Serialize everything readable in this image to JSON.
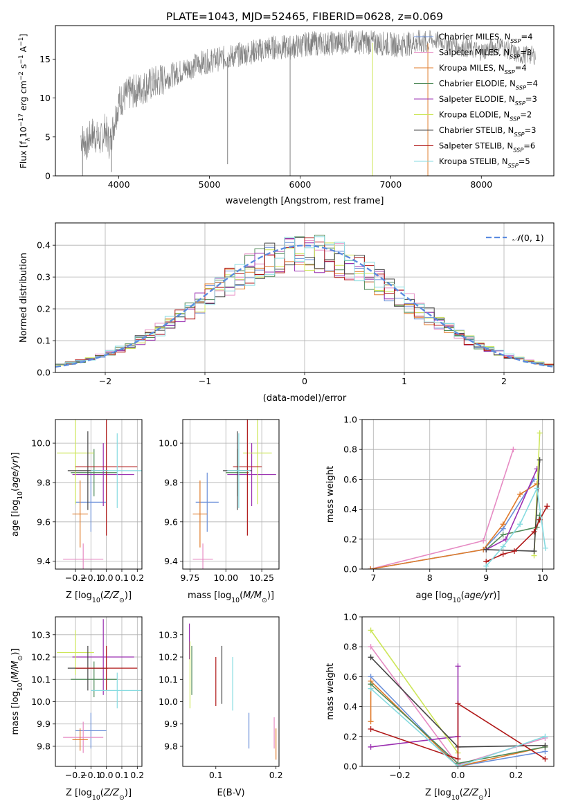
{
  "figure": {
    "title": "PLATE=1043, MJD=52465, FIBERID=0628, z=0.069"
  },
  "models": [
    {
      "name": "Chabrier MILES",
      "nssp": "4",
      "color": "#6a8fd9"
    },
    {
      "name": "Salpeter MILES",
      "nssp": "3",
      "color": "#e68ac3"
    },
    {
      "name": "Kroupa MILES",
      "nssp": "4",
      "color": "#e07b2a"
    },
    {
      "name": "Chabrier ELODIE",
      "nssp": "4",
      "color": "#4f8a58"
    },
    {
      "name": "Salpeter ELODIE",
      "nssp": "3",
      "color": "#9a2fb0"
    },
    {
      "name": "Kroupa ELODIE",
      "nssp": "2",
      "color": "#cde658"
    },
    {
      "name": "Chabrier STELIB",
      "nssp": "3",
      "color": "#444444"
    },
    {
      "name": "Salpeter STELIB",
      "nssp": "6",
      "color": "#b01818"
    },
    {
      "name": "Kroupa STELIB",
      "nssp": "5",
      "color": "#86dbe0"
    }
  ],
  "chart_data": [
    {
      "id": "spectrum",
      "type": "line",
      "xlabel": "wavelength [Angstrom, rest frame]",
      "ylabel": "Flux [f_λ10^-17 erg cm^-2 s^-1 A^-1]",
      "xlim": [
        3300,
        8800
      ],
      "ylim": [
        0,
        19.3
      ],
      "xticks": [
        4000,
        5000,
        6000,
        7000,
        8000
      ],
      "yticks": [
        0,
        5,
        10,
        15
      ],
      "data_color": "#808080",
      "model_color": "#7fd6dc",
      "continuum": {
        "x": [
          3580,
          3650,
          3700,
          3800,
          3850,
          3900,
          3950,
          4000,
          4100,
          4200,
          4300,
          4500,
          4700,
          4900,
          5100,
          5300,
          5500,
          5700,
          5900,
          6100,
          6300,
          6500,
          6700,
          6900,
          7100,
          7300,
          7420
        ],
        "y": [
          5,
          4,
          5.5,
          4.5,
          6,
          4,
          7,
          9.5,
          10.5,
          11,
          11.5,
          12.5,
          13.5,
          14.5,
          15,
          15.5,
          16,
          16.5,
          16.5,
          17,
          17,
          17.2,
          17.2,
          17,
          16.8,
          17.2,
          17
        ]
      },
      "tail": {
        "x": [
          7420,
          7600,
          7800,
          8000,
          8200,
          8400,
          8600
        ],
        "y": [
          17.5,
          17.2,
          16.5,
          16,
          16.8,
          15.5,
          15.5
        ]
      },
      "absorption_spikes": [
        {
          "x": 3600,
          "ymin": 0
        },
        {
          "x": 3920,
          "ymin": 0.5
        },
        {
          "x": 5200,
          "ymin": 1.5
        },
        {
          "x": 5890,
          "ymin": 0
        },
        {
          "x": 6800,
          "ymin": 0
        },
        {
          "x": 7410,
          "ymin": 0
        }
      ]
    },
    {
      "id": "residual-histogram",
      "type": "bar",
      "xlabel": "(data-model)/error",
      "ylabel": "Normed distribution",
      "xlim": [
        -2.5,
        2.5
      ],
      "ylim": [
        0,
        0.47
      ],
      "xticks": [
        -2,
        -1,
        0,
        1,
        2
      ],
      "yticks": [
        0.0,
        0.1,
        0.2,
        0.3,
        0.4
      ],
      "grid": true,
      "bin_width": 0.1,
      "legend": "N(0,1)",
      "legend_position": "top-right",
      "gaussian_color": "#5b8be0"
    },
    {
      "id": "age-vs-Z",
      "type": "scatter",
      "xlabel": "Z [log10(Z/Z⊙)]",
      "ylabel": "age [log10(age/yr)]",
      "xlim": [
        -0.33,
        0.23
      ],
      "ylim": [
        9.36,
        10.12
      ],
      "xticks": [
        -0.2,
        -0.1,
        0.0,
        0.1,
        0.2
      ],
      "yticks": [
        9.4,
        9.6,
        9.8,
        10.0
      ],
      "grid": true,
      "points": [
        {
          "x": -0.1,
          "xerr": 0.1,
          "y": 9.7,
          "yerr": 0.15
        },
        {
          "x": -0.15,
          "xerr": 0.13,
          "y": 9.41,
          "yerr": 0.08
        },
        {
          "x": -0.17,
          "xerr": 0.05,
          "y": 9.64,
          "yerr": 0.17
        },
        {
          "x": -0.08,
          "xerr": 0.15,
          "y": 9.85,
          "yerr": 0.12
        },
        {
          "x": -0.02,
          "xerr": 0.2,
          "y": 9.84,
          "yerr": 0.16
        },
        {
          "x": -0.2,
          "xerr": 0.12,
          "y": 9.95,
          "yerr": 0.26
        },
        {
          "x": -0.12,
          "xerr": 0.13,
          "y": 9.86,
          "yerr": 0.2
        },
        {
          "x": 0.0,
          "xerr": 0.2,
          "y": 9.88,
          "yerr": 0.35
        },
        {
          "x": 0.07,
          "xerr": 0.17,
          "y": 9.86,
          "yerr": 0.19
        }
      ]
    },
    {
      "id": "age-vs-mass",
      "type": "scatter",
      "xlabel": "mass [log10(M/M⊙)]",
      "ylabel": "",
      "xlim": [
        9.7,
        10.37
      ],
      "ylim": [
        9.36,
        10.12
      ],
      "xticks": [
        9.75,
        10.0,
        10.25
      ],
      "yticks": [
        9.4,
        9.6,
        9.8,
        10.0
      ],
      "grid": true,
      "points": [
        {
          "x": 9.87,
          "xerr": 0.08,
          "y": 9.7,
          "yerr": 0.15
        },
        {
          "x": 9.84,
          "xerr": 0.07,
          "y": 9.41,
          "yerr": 0.08
        },
        {
          "x": 9.82,
          "xerr": 0.05,
          "y": 9.64,
          "yerr": 0.17
        },
        {
          "x": 10.08,
          "xerr": 0.08,
          "y": 9.85,
          "yerr": 0.12
        },
        {
          "x": 10.18,
          "xerr": 0.17,
          "y": 9.84,
          "yerr": 0.16
        },
        {
          "x": 10.22,
          "xerr": 0.1,
          "y": 9.95,
          "yerr": 0.26
        },
        {
          "x": 10.08,
          "xerr": 0.1,
          "y": 9.86,
          "yerr": 0.2
        },
        {
          "x": 10.15,
          "xerr": 0.1,
          "y": 9.88,
          "yerr": 0.35
        },
        {
          "x": 10.09,
          "xerr": 0.08,
          "y": 9.86,
          "yerr": 0.19
        }
      ]
    },
    {
      "id": "mass-weight-vs-age",
      "type": "line",
      "xlabel": "age [log10(age/yr)]",
      "ylabel": "mass weight",
      "xlim": [
        6.8,
        10.2
      ],
      "ylim": [
        0,
        1.0
      ],
      "xticks": [
        7,
        8,
        9,
        10
      ],
      "yticks": [
        0.0,
        0.2,
        0.4,
        0.6,
        0.8,
        1.0
      ],
      "grid": true,
      "series": [
        {
          "x": [
            6.95,
            8.95,
            9.3,
            9.85
          ],
          "y": [
            0.0,
            0.13,
            0.27,
            0.6
          ]
        },
        {
          "x": [
            6.95,
            8.95,
            9.48
          ],
          "y": [
            0.0,
            0.19,
            0.8
          ]
        },
        {
          "x": [
            6.95,
            8.95,
            9.3,
            9.6,
            9.9
          ],
          "y": [
            0.0,
            0.13,
            0.3,
            0.5,
            0.57
          ]
        },
        {
          "x": [
            9.0,
            9.3,
            9.9,
            9.95
          ],
          "y": [
            0.13,
            0.23,
            0.28,
            0.36
          ]
        },
        {
          "x": [
            9.0,
            9.35,
            9.9
          ],
          "y": [
            0.13,
            0.2,
            0.67
          ]
        },
        {
          "x": [
            9.85,
            9.95
          ],
          "y": [
            0.09,
            0.91
          ]
        },
        {
          "x": [
            9.0,
            9.85,
            9.95
          ],
          "y": [
            0.13,
            0.12,
            0.73
          ]
        },
        {
          "x": [
            9.0,
            9.3,
            9.5,
            9.85,
            9.95,
            10.08
          ],
          "y": [
            0.05,
            0.1,
            0.12,
            0.25,
            0.33,
            0.42
          ]
        },
        {
          "x": [
            9.0,
            9.3,
            9.6,
            9.9,
            10.05
          ],
          "y": [
            0.02,
            0.15,
            0.3,
            0.54,
            0.14
          ]
        }
      ]
    },
    {
      "id": "mass-vs-Z",
      "type": "scatter",
      "xlabel": "Z [log10(Z/Z⊙)]",
      "ylabel": "mass [log10(M/M⊙)]",
      "xlim": [
        -0.33,
        0.23
      ],
      "ylim": [
        9.71,
        10.38
      ],
      "xticks": [
        -0.2,
        -0.1,
        0.0,
        0.1,
        0.2
      ],
      "yticks": [
        9.8,
        9.9,
        10.0,
        10.1,
        10.2,
        10.3
      ],
      "grid": true,
      "points": [
        {
          "x": -0.1,
          "xerr": 0.1,
          "y": 9.87,
          "yerr": 0.08
        },
        {
          "x": -0.15,
          "xerr": 0.13,
          "y": 9.84,
          "yerr": 0.07
        },
        {
          "x": -0.17,
          "xerr": 0.05,
          "y": 9.83,
          "yerr": 0.05
        },
        {
          "x": -0.08,
          "xerr": 0.15,
          "y": 10.1,
          "yerr": 0.08
        },
        {
          "x": -0.02,
          "xerr": 0.2,
          "y": 10.2,
          "yerr": 0.17
        },
        {
          "x": -0.2,
          "xerr": 0.12,
          "y": 10.22,
          "yerr": 0.1
        },
        {
          "x": -0.12,
          "xerr": 0.13,
          "y": 10.15,
          "yerr": 0.1
        },
        {
          "x": 0.0,
          "xerr": 0.2,
          "y": 10.15,
          "yerr": 0.1
        },
        {
          "x": 0.07,
          "xerr": 0.17,
          "y": 10.05,
          "yerr": 0.08
        }
      ]
    },
    {
      "id": "mass-vs-ebv",
      "type": "scatter",
      "xlabel": "E(B-V)",
      "ylabel": "",
      "xlim": [
        0.045,
        0.205
      ],
      "ylim": [
        9.71,
        10.38
      ],
      "xticks": [
        0.1,
        0.2
      ],
      "yticks": [
        9.8,
        9.9,
        10.0,
        10.1,
        10.2,
        10.3
      ],
      "grid": false,
      "points": [
        {
          "x": 0.155,
          "y": 9.87,
          "yerr": 0.08
        },
        {
          "x": 0.197,
          "y": 9.86,
          "yerr": 0.07
        },
        {
          "x": 0.2,
          "y": 9.81,
          "yerr": 0.07
        },
        {
          "x": 0.06,
          "y": 10.14,
          "yerr": 0.11
        },
        {
          "x": 0.056,
          "y": 10.27,
          "yerr": 0.08
        },
        {
          "x": 0.057,
          "y": 10.12,
          "yerr": 0.15
        },
        {
          "x": 0.11,
          "y": 10.12,
          "yerr": 0.13
        },
        {
          "x": 0.1,
          "y": 10.09,
          "yerr": 0.11
        },
        {
          "x": 0.128,
          "y": 10.08,
          "yerr": 0.12
        }
      ]
    },
    {
      "id": "mass-weight-vs-Z",
      "type": "line",
      "xlabel": "Z [log10(Z/Z⊙)]",
      "ylabel": "mass weight",
      "xlim": [
        -0.33,
        0.33
      ],
      "ylim": [
        0,
        1.0
      ],
      "xticks": [
        -0.2,
        0.0,
        0.2
      ],
      "yticks": [
        0.0,
        0.2,
        0.4,
        0.6,
        0.8,
        1.0
      ],
      "grid": true,
      "series": [
        {
          "x": [
            -0.3,
            0.0,
            0.3
          ],
          "y": [
            0.6,
            0.0,
            0.1
          ]
        },
        {
          "x": [
            -0.3,
            0.0,
            0.3
          ],
          "y": [
            0.8,
            0.01,
            0.19
          ]
        },
        {
          "x": [
            -0.3,
            -0.3,
            0.0,
            0.3
          ],
          "y": [
            0.3,
            0.57,
            0.0,
            0.13
          ]
        },
        {
          "x": [
            -0.3,
            0.0,
            0.3
          ],
          "y": [
            0.55,
            0.02,
            0.13
          ]
        },
        {
          "x": [
            -0.3,
            0.0,
            0.0
          ],
          "y": [
            0.13,
            0.2,
            0.67
          ]
        },
        {
          "x": [
            -0.3,
            0.0
          ],
          "y": [
            0.91,
            0.09
          ]
        },
        {
          "x": [
            -0.3,
            0.0,
            0.3
          ],
          "y": [
            0.73,
            0.13,
            0.14
          ]
        },
        {
          "x": [
            -0.3,
            0.0,
            0.0,
            0.3
          ],
          "y": [
            0.25,
            0.05,
            0.42,
            0.05
          ]
        },
        {
          "x": [
            -0.3,
            0.0,
            0.3
          ],
          "y": [
            0.52,
            0.0,
            0.2
          ]
        }
      ]
    }
  ]
}
